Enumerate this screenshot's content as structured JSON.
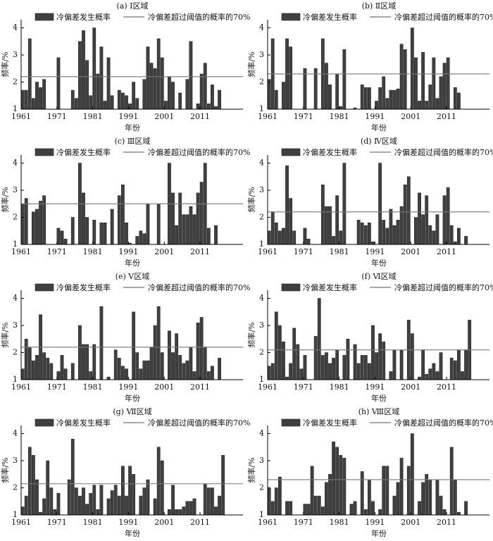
{
  "chart_data": [
    {
      "type": "bar",
      "title": "(a) Ⅰ区域",
      "xlabel": "年份",
      "ylabel": "频率/%",
      "x": [
        1961,
        1962,
        1963,
        1964,
        1965,
        1966,
        1967,
        1968,
        1969,
        1970,
        1971,
        1972,
        1973,
        1974,
        1975,
        1976,
        1977,
        1978,
        1979,
        1980,
        1981,
        1982,
        1983,
        1984,
        1985,
        1986,
        1987,
        1988,
        1989,
        1990,
        1991,
        1992,
        1993,
        1994,
        1995,
        1996,
        1997,
        1998,
        1999,
        2000,
        2001,
        2002,
        2003,
        2004,
        2005,
        2006,
        2007,
        2008,
        2009,
        2010,
        2011,
        2012,
        2013,
        2014,
        2015,
        2016,
        2017,
        2018
      ],
      "series": [
        {
          "name": "冷偏差发生概率",
          "color": "#404040",
          "values": [
            1.7,
            1.7,
            3.6,
            1.4,
            2.0,
            1.8,
            2.1,
            null,
            null,
            null,
            2.9,
            null,
            null,
            null,
            1.7,
            1.4,
            3.5,
            3.9,
            2.8,
            1.5,
            4.0,
            2.3,
            3.3,
            1.3,
            2.9,
            1.5,
            null,
            1.7,
            1.6,
            1.5,
            1.2,
            2.0,
            1.4,
            null,
            2.1,
            3.3,
            2.7,
            2.5,
            3.6,
            2.9,
            1.3,
            2.2,
            2.0,
            null,
            1.6,
            null,
            2.1,
            3.5,
            null,
            1.2,
            2.3,
            2.7,
            1.2,
            1.9,
            1.1,
            1.7,
            null,
            null
          ]
        },
        {
          "name": "冷偏差超过阈值的概率的70%",
          "color": "#777777",
          "value": 2.2
        }
      ],
      "xlim": [
        1961,
        2023
      ],
      "xticks": [
        1961,
        1971,
        1981,
        1991,
        2001,
        2011
      ],
      "ylim": [
        1,
        4.3
      ],
      "yticks": [
        1,
        2,
        3,
        4
      ]
    },
    {
      "type": "bar",
      "title": "(b) Ⅱ区域",
      "xlabel": "年份",
      "ylabel": "频率/%",
      "x": [
        1961,
        1962,
        1963,
        1964,
        1965,
        1966,
        1967,
        1968,
        1969,
        1970,
        1971,
        1972,
        1973,
        1974,
        1975,
        1976,
        1977,
        1978,
        1979,
        1980,
        1981,
        1982,
        1983,
        1984,
        1985,
        1986,
        1987,
        1988,
        1989,
        1990,
        1991,
        1992,
        1993,
        1994,
        1995,
        1996,
        1997,
        1998,
        1999,
        2000,
        2001,
        2002,
        2003,
        2004,
        2005,
        2006,
        2007,
        2008,
        2009,
        2010,
        2011,
        2012,
        2013,
        2014,
        2015,
        2016,
        2017,
        2018
      ],
      "series": [
        {
          "name": "冷偏差发生概率",
          "color": "#404040",
          "values": [
            2.1,
            3.6,
            1.7,
            null,
            2.0,
            3.6,
            3.3,
            null,
            null,
            null,
            2.5,
            null,
            null,
            2.5,
            null,
            3.6,
            2.7,
            1.9,
            null,
            2.3,
            1.1,
            3.2,
            null,
            null,
            1.05,
            null,
            1.9,
            1.8,
            1.8,
            null,
            1.3,
            1.8,
            2.2,
            1.4,
            1.7,
            1.7,
            1.75,
            3.4,
            3.2,
            null,
            4.0,
            2.9,
            1.3,
            3.1,
            1.3,
            1.9,
            2.9,
            1.4,
            2.2,
            2.7,
            2.9,
            null,
            1.8,
            1.6,
            null,
            null,
            null,
            null
          ]
        },
        {
          "name": "冷偏差超过阈值的概率的70%",
          "color": "#777777",
          "value": 2.3
        }
      ],
      "xlim": [
        1961,
        2023
      ],
      "xticks": [
        1961,
        1971,
        1981,
        1991,
        2001,
        2011
      ],
      "ylim": [
        1,
        4.3
      ],
      "yticks": [
        1,
        2,
        3,
        4
      ]
    },
    {
      "type": "bar",
      "title": "(c) Ⅲ区域",
      "xlabel": "年份",
      "ylabel": "频率/%",
      "x": [
        1961,
        1962,
        1963,
        1964,
        1965,
        1966,
        1967,
        1968,
        1969,
        1970,
        1971,
        1972,
        1973,
        1974,
        1975,
        1976,
        1977,
        1978,
        1979,
        1980,
        1981,
        1982,
        1983,
        1984,
        1985,
        1986,
        1987,
        1988,
        1989,
        1990,
        1991,
        1992,
        1993,
        1994,
        1995,
        1996,
        1997,
        1998,
        1999,
        2000,
        2001,
        2002,
        2003,
        2004,
        2005,
        2006,
        2007,
        2008,
        2009,
        2010,
        2011,
        2012,
        2013,
        2014,
        2015,
        2016,
        2017,
        2018
      ],
      "series": [
        {
          "name": "冷偏差发生概率",
          "color": "#404040",
          "values": [
            2.5,
            2.7,
            null,
            2.2,
            2.3,
            2.6,
            2.8,
            null,
            null,
            null,
            1.6,
            1.5,
            1.2,
            null,
            2.0,
            null,
            4.0,
            2.9,
            2.0,
            null,
            1.9,
            null,
            1.8,
            1.8,
            null,
            2.3,
            null,
            2.8,
            3.2,
            1.8,
            1.05,
            null,
            1.3,
            1.5,
            1.4,
            2.5,
            null,
            null,
            2.5,
            null,
            null,
            4.0,
            2.9,
            1.7,
            2.9,
            2.1,
            2.1,
            2.4,
            2.1,
            2.9,
            3.3,
            4.0,
            1.6,
            null,
            1.7,
            null,
            null,
            null
          ]
        },
        {
          "name": "冷偏差超过阈值的概率的70%",
          "color": "#777777",
          "value": 2.5
        }
      ],
      "xlim": [
        1961,
        2023
      ],
      "xticks": [
        1961,
        1971,
        1981,
        1991,
        2001,
        2011
      ],
      "ylim": [
        1,
        4.3
      ],
      "yticks": [
        1,
        2,
        3,
        4
      ]
    },
    {
      "type": "bar",
      "title": "(d) Ⅳ区域",
      "xlabel": "年份",
      "ylabel": "频率/%",
      "x": [
        1961,
        1962,
        1963,
        1964,
        1965,
        1966,
        1967,
        1968,
        1969,
        1970,
        1971,
        1972,
        1973,
        1974,
        1975,
        1976,
        1977,
        1978,
        1979,
        1980,
        1981,
        1982,
        1983,
        1984,
        1985,
        1986,
        1987,
        1988,
        1989,
        1990,
        1991,
        1992,
        1993,
        1994,
        1995,
        1996,
        1997,
        1998,
        1999,
        2000,
        2001,
        2002,
        2003,
        2004,
        2005,
        2006,
        2007,
        2008,
        2009,
        2010,
        2011,
        2012,
        2013,
        2014,
        2015,
        2016,
        2017,
        2018
      ],
      "series": [
        {
          "name": "冷偏差发生概率",
          "color": "#404040",
          "values": [
            1.5,
            2.2,
            1.8,
            1.5,
            1.6,
            3.9,
            2.7,
            1.5,
            null,
            null,
            1.6,
            1.2,
            null,
            null,
            null,
            3.2,
            2.4,
            2.4,
            1.3,
            2.8,
            1.5,
            4.0,
            null,
            null,
            null,
            1.9,
            1.8,
            1.7,
            1.8,
            1.1,
            null,
            4.0,
            1.9,
            1.6,
            2.3,
            1.7,
            1.9,
            2.4,
            3.2,
            3.5,
            null,
            2.0,
            2.9,
            2.1,
            2.8,
            1.7,
            1.5,
            2.1,
            null,
            2.8,
            3.1,
            1.7,
            1.1,
            1.6,
            null,
            1.3,
            null,
            null
          ]
        },
        {
          "name": "冷偏差超过阈值的概率的70%",
          "color": "#777777",
          "value": 2.2
        }
      ],
      "xlim": [
        1961,
        2023
      ],
      "xticks": [
        1961,
        1971,
        1981,
        1991,
        2001,
        2011
      ],
      "ylim": [
        1,
        4.3
      ],
      "yticks": [
        1,
        2,
        3,
        4
      ]
    },
    {
      "type": "bar",
      "title": "(e) Ⅴ区域",
      "xlabel": "年份",
      "ylabel": "频率/%",
      "x": [
        1961,
        1962,
        1963,
        1964,
        1965,
        1966,
        1967,
        1968,
        1969,
        1970,
        1971,
        1972,
        1973,
        1974,
        1975,
        1976,
        1977,
        1978,
        1979,
        1980,
        1981,
        1982,
        1983,
        1984,
        1985,
        1986,
        1987,
        1988,
        1989,
        1990,
        1991,
        1992,
        1993,
        1994,
        1995,
        1996,
        1997,
        1998,
        1999,
        2000,
        2001,
        2002,
        2003,
        2004,
        2005,
        2006,
        2007,
        2008,
        2009,
        2010,
        2011,
        2012,
        2013,
        2014,
        2015,
        2016,
        2017,
        2018
      ],
      "series": [
        {
          "name": "冷偏差发生概率",
          "color": "#404040",
          "values": [
            1.4,
            2.5,
            2.2,
            1.7,
            1.9,
            3.4,
            2.0,
            1.8,
            1.6,
            null,
            1.3,
            1.9,
            1.4,
            null,
            1.6,
            null,
            3.0,
            2.3,
            2.3,
            1.3,
            2.3,
            null,
            3.7,
            null,
            1.1,
            null,
            2.1,
            1.8,
            1.5,
            1.4,
            null,
            3.5,
            2.0,
            1.4,
            1.7,
            1.7,
            2.2,
            3.0,
            3.7,
            2.0,
            null,
            2.8,
            2.0,
            2.7,
            1.9,
            1.6,
            1.7,
            2.2,
            1.3,
            3.1,
            3.3,
            2.2,
            1.3,
            1.5,
            null,
            1.8,
            null,
            null
          ]
        },
        {
          "name": "冷偏差超过阈值的概率的70%",
          "color": "#777777",
          "value": 2.2
        }
      ],
      "xlim": [
        1961,
        2023
      ],
      "xticks": [
        1961,
        1971,
        1981,
        1991,
        2001,
        2011
      ],
      "ylim": [
        1,
        4.3
      ],
      "yticks": [
        1,
        2,
        3,
        4
      ]
    },
    {
      "type": "bar",
      "title": "(f) Ⅵ区域",
      "xlabel": "年份",
      "ylabel": "频率/%",
      "x": [
        1961,
        1962,
        1963,
        1964,
        1965,
        1966,
        1967,
        1968,
        1969,
        1970,
        1971,
        1972,
        1973,
        1974,
        1975,
        1976,
        1977,
        1978,
        1979,
        1980,
        1981,
        1982,
        1983,
        1984,
        1985,
        1986,
        1987,
        1988,
        1989,
        1990,
        1991,
        1992,
        1993,
        1994,
        1995,
        1996,
        1997,
        1998,
        1999,
        2000,
        2001,
        2002,
        2003,
        2004,
        2005,
        2006,
        2007,
        2008,
        2009,
        2010,
        2011,
        2012,
        2013,
        2014,
        2015,
        2016,
        2017,
        2018
      ],
      "series": [
        {
          "name": "冷偏差发生概率",
          "color": "#404040",
          "values": [
            1.5,
            1.6,
            3.5,
            3.0,
            2.4,
            1.1,
            1.6,
            2.9,
            2.3,
            1.4,
            1.9,
            null,
            null,
            2.6,
            4.0,
            1.9,
            2.0,
            1.6,
            1.8,
            2.1,
            null,
            1.9,
            2.5,
            null,
            2.3,
            1.6,
            1.9,
            1.9,
            1.6,
            3.0,
            2.0,
            2.7,
            2.4,
            null,
            1.3,
            2.1,
            null,
            2.1,
            null,
            3.2,
            2.7,
            null,
            1.1,
            2.1,
            1.2,
            1.4,
            1.6,
            1.3,
            2.0,
            null,
            null,
            1.8,
            1.7,
            2.1,
            1.3,
            2.1,
            3.2,
            null
          ]
        },
        {
          "name": "冷偏差超过阈值的概率的70%",
          "color": "#777777",
          "value": 2.1
        }
      ],
      "xlim": [
        1961,
        2023
      ],
      "xticks": [
        1961,
        1971,
        1981,
        1991,
        2001,
        2011
      ],
      "ylim": [
        1,
        4.3
      ],
      "yticks": [
        1,
        2,
        3,
        4
      ]
    },
    {
      "type": "bar",
      "title": "(g) Ⅶ区域",
      "xlabel": "年份",
      "ylabel": "频率/%",
      "x": [
        1961,
        1962,
        1963,
        1964,
        1965,
        1966,
        1967,
        1968,
        1969,
        1970,
        1971,
        1972,
        1973,
        1974,
        1975,
        1976,
        1977,
        1978,
        1979,
        1980,
        1981,
        1982,
        1983,
        1984,
        1985,
        1986,
        1987,
        1988,
        1989,
        1990,
        1991,
        1992,
        1993,
        1994,
        1995,
        1996,
        1997,
        1998,
        1999,
        2000,
        2001,
        2002,
        2003,
        2004,
        2005,
        2006,
        2007,
        2008,
        2009,
        2010,
        2011,
        2012,
        2013,
        2014,
        2015,
        2016,
        2017,
        2018
      ],
      "series": [
        {
          "name": "冷偏差发生概率",
          "color": "#404040",
          "values": [
            1.3,
            1.7,
            3.5,
            3.2,
            2.3,
            1.1,
            1.6,
            3.0,
            2.0,
            1.2,
            1.8,
            null,
            null,
            2.3,
            3.8,
            2.0,
            1.7,
            2.0,
            1.4,
            1.8,
            2.1,
            1.2,
            2.1,
            null,
            1.6,
            1.9,
            2.1,
            1.7,
            2.8,
            1.7,
            2.8,
            2.5,
            null,
            1.7,
            2.0,
            2.3,
            null,
            1.6,
            3.5,
            3.0,
            null,
            1.2,
            2.1,
            1.2,
            1.2,
            1.3,
            1.5,
            1.5,
            1.6,
            null,
            null,
            2.15,
            2.0,
            2.0,
            1.3,
            1.7,
            3.2,
            null
          ]
        },
        {
          "name": "冷偏差超过阈值的概率的70%",
          "color": "#777777",
          "value": 2.15
        }
      ],
      "xlim": [
        1961,
        2023
      ],
      "xticks": [
        1961,
        1971,
        1981,
        1991,
        2001,
        2011
      ],
      "ylim": [
        1,
        4.3
      ],
      "yticks": [
        1,
        2,
        3,
        4
      ]
    },
    {
      "type": "bar",
      "title": "(h) Ⅷ区域",
      "xlabel": "年份",
      "ylabel": "频率/%",
      "x": [
        1961,
        1962,
        1963,
        1964,
        1965,
        1966,
        1967,
        1968,
        1969,
        1970,
        1971,
        1972,
        1973,
        1974,
        1975,
        1976,
        1977,
        1978,
        1979,
        1980,
        1981,
        1982,
        1983,
        1984,
        1985,
        1986,
        1987,
        1988,
        1989,
        1990,
        1991,
        1992,
        1993,
        1994,
        1995,
        1996,
        1997,
        1998,
        1999,
        2000,
        2001,
        2002,
        2003,
        2004,
        2005,
        2006,
        2007,
        2008,
        2009,
        2010,
        2011,
        2012,
        2013,
        2014,
        2015,
        2016,
        2017,
        2018
      ],
      "series": [
        {
          "name": "冷偏差发生概率",
          "color": "#404040",
          "values": [
            2.0,
            1.5,
            2.0,
            2.4,
            null,
            1.5,
            1.5,
            null,
            null,
            null,
            1.4,
            1.4,
            2.8,
            1.7,
            1.7,
            1.3,
            2.2,
            2.5,
            3.7,
            3.5,
            3.2,
            3.1,
            null,
            1.4,
            1.5,
            null,
            2.6,
            1.2,
            2.3,
            1.5,
            null,
            1.2,
            2.8,
            2.8,
            null,
            1.7,
            2.2,
            3.1,
            null,
            2.8,
            4.0,
            null,
            1.5,
            2.2,
            2.5,
            2.3,
            null,
            2.3,
            1.7,
            1.2,
            null,
            3.5,
            2.3,
            1.1,
            null,
            1.5,
            null,
            null
          ]
        },
        {
          "name": "冷偏差超过阈值的概率的70%",
          "color": "#777777",
          "value": 2.3
        }
      ],
      "xlim": [
        1961,
        2023
      ],
      "xticks": [
        1961,
        1971,
        1981,
        1991,
        2001,
        2011
      ],
      "ylim": [
        1,
        4.3
      ],
      "yticks": [
        1,
        2,
        3,
        4
      ]
    }
  ]
}
